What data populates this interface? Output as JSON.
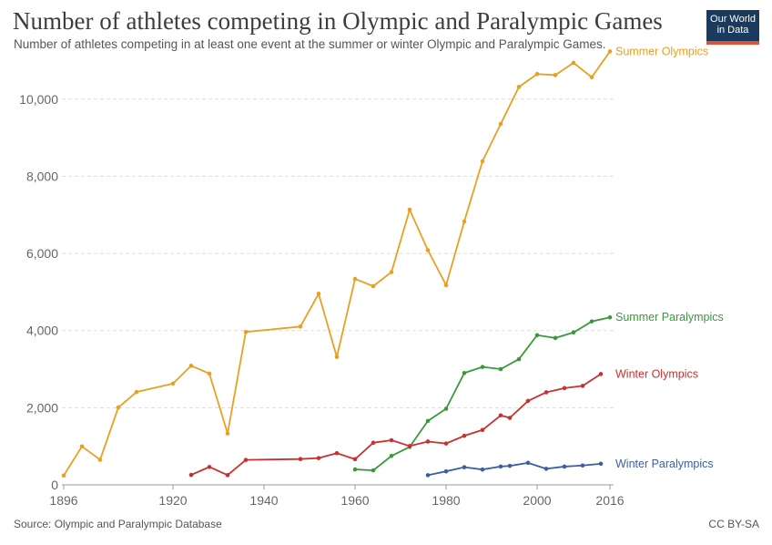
{
  "header": {
    "title": "Number of athletes competing in Olympic and Paralympic Games",
    "subtitle": "Number of athletes competing in at least one event at the summer or winter Olympic and Paralympic Games."
  },
  "logo": {
    "line1": "Our World",
    "line2": "in Data"
  },
  "footer": {
    "source": "Source: Olympic and Paralympic Database",
    "license": "CC BY-SA"
  },
  "chart_data": {
    "type": "line",
    "title": "Number of athletes competing in Olympic and Paralympic Games",
    "xlabel": "",
    "ylabel": "",
    "xlim": [
      1896,
      2016
    ],
    "ylim": [
      0,
      11200
    ],
    "grid": true,
    "x_ticks": [
      1896,
      1920,
      1940,
      1960,
      1980,
      2000,
      2016
    ],
    "x_tick_labels": [
      "1896",
      "1920",
      "1940",
      "1960",
      "1980",
      "2000",
      "2016"
    ],
    "y_ticks": [
      0,
      2000,
      4000,
      6000,
      8000,
      10000
    ],
    "y_tick_labels": [
      "0",
      "2,000",
      "4,000",
      "6,000",
      "8,000",
      "10,000"
    ],
    "series": [
      {
        "name": "Summer Olympics",
        "color": "#e8a023",
        "x": [
          1896,
          1900,
          1904,
          1908,
          1912,
          1920,
          1924,
          1928,
          1932,
          1936,
          1948,
          1952,
          1956,
          1960,
          1964,
          1968,
          1972,
          1976,
          1980,
          1984,
          1988,
          1992,
          1996,
          2000,
          2004,
          2008,
          2012,
          2016
        ],
        "y": [
          241,
          997,
          651,
          2008,
          2407,
          2626,
          3089,
          2883,
          1332,
          3963,
          4104,
          4955,
          3314,
          5338,
          5151,
          5516,
          7134,
          6084,
          5179,
          6829,
          8391,
          9356,
          10318,
          10651,
          10625,
          10942,
          10568,
          11238
        ]
      },
      {
        "name": "Summer Paralympics",
        "color": "#3a9a3a",
        "x": [
          1960,
          1964,
          1968,
          1972,
          1976,
          1980,
          1984,
          1988,
          1992,
          1996,
          2000,
          2004,
          2008,
          2012,
          2016
        ],
        "y": [
          400,
          375,
          750,
          984,
          1657,
          1973,
          2900,
          3057,
          3001,
          3259,
          3881,
          3808,
          3951,
          4237,
          4342
        ]
      },
      {
        "name": "Winter Olympics",
        "color": "#c93030",
        "x": [
          1924,
          1928,
          1932,
          1936,
          1948,
          1952,
          1956,
          1960,
          1964,
          1968,
          1972,
          1976,
          1980,
          1984,
          1988,
          1992,
          1994,
          1998,
          2002,
          2006,
          2010,
          2014
        ],
        "y": [
          258,
          464,
          252,
          646,
          669,
          694,
          821,
          665,
          1091,
          1158,
          1006,
          1123,
          1072,
          1272,
          1423,
          1801,
          1737,
          2176,
          2399,
          2508,
          2566,
          2873
        ]
      },
      {
        "name": "Winter Paralympics",
        "color": "#3b5fa3",
        "x": [
          1976,
          1980,
          1984,
          1988,
          1992,
          1994,
          1998,
          2002,
          2006,
          2010,
          2014
        ],
        "y": [
          250,
          350,
          457,
          397,
          475,
          492,
          571,
          416,
          474,
          502,
          547
        ]
      }
    ]
  }
}
